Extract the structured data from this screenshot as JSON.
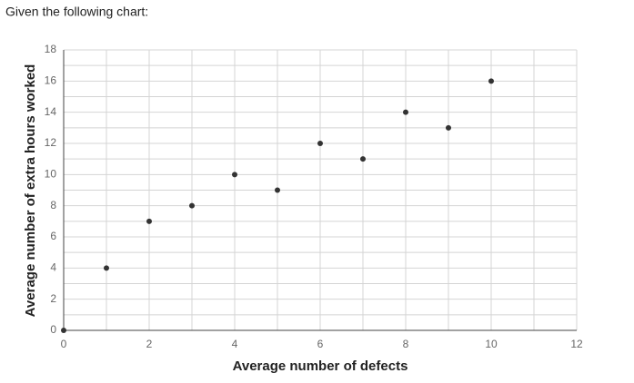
{
  "caption": "Given the following chart:",
  "chart_data": {
    "type": "scatter",
    "x_label": "Average number of defects",
    "y_label": "Average number of extra hours worked",
    "x": [
      0,
      1,
      2,
      3,
      4,
      5,
      6,
      7,
      8,
      9,
      10
    ],
    "series": [
      {
        "color": "#333333",
        "values": [
          0,
          4,
          7,
          8,
          10,
          9,
          12,
          11,
          14,
          13,
          16
        ]
      }
    ],
    "xlim": [
      0,
      12
    ],
    "xticks": [
      0,
      2,
      4,
      6,
      8,
      10,
      12
    ],
    "ylim": [
      0,
      18
    ],
    "yticks": [
      0,
      2,
      4,
      6,
      8,
      10,
      12,
      14,
      16,
      18
    ],
    "x_minor_grid": [
      1,
      3,
      5,
      7,
      9,
      11
    ],
    "y_minor_grid": [
      1,
      3,
      5,
      7,
      9,
      11,
      13,
      15,
      17
    ],
    "grid": true
  }
}
